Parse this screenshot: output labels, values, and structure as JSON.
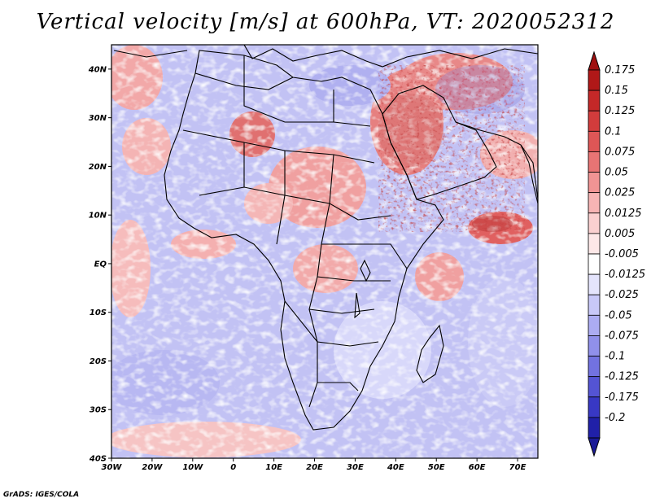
{
  "title": "Vertical velocity [m/s] at 600hPa, VT: 2020052312",
  "credit": "GrADS: IGES/COLA",
  "map": {
    "lon_range": [
      -30,
      75
    ],
    "lat_range": [
      -40,
      45
    ],
    "lat_ticks": [
      {
        "value": 40,
        "label": "40N"
      },
      {
        "value": 30,
        "label": "30N"
      },
      {
        "value": 20,
        "label": "20N"
      },
      {
        "value": 10,
        "label": "10N"
      },
      {
        "value": 0,
        "label": "EQ"
      },
      {
        "value": -10,
        "label": "10S"
      },
      {
        "value": -20,
        "label": "20S"
      },
      {
        "value": -30,
        "label": "30S"
      },
      {
        "value": -40,
        "label": "40S"
      }
    ],
    "lon_ticks": [
      {
        "value": -30,
        "label": "30W"
      },
      {
        "value": -20,
        "label": "20W"
      },
      {
        "value": -10,
        "label": "10W"
      },
      {
        "value": 0,
        "label": "0"
      },
      {
        "value": 10,
        "label": "10E"
      },
      {
        "value": 20,
        "label": "20E"
      },
      {
        "value": 30,
        "label": "30E"
      },
      {
        "value": 40,
        "label": "40E"
      },
      {
        "value": 50,
        "label": "50E"
      },
      {
        "value": 60,
        "label": "60E"
      },
      {
        "value": 70,
        "label": "70E"
      }
    ]
  },
  "colorbar": {
    "levels": [
      {
        "label": "0.175",
        "color": "#b01818"
      },
      {
        "label": "0.15",
        "color": "#c42828"
      },
      {
        "label": "0.125",
        "color": "#d23c3c"
      },
      {
        "label": "0.1",
        "color": "#de5656"
      },
      {
        "label": "0.075",
        "color": "#e87474"
      },
      {
        "label": "0.05",
        "color": "#f09494"
      },
      {
        "label": "0.025",
        "color": "#f6b4b4"
      },
      {
        "label": "0.0125",
        "color": "#fad0d0"
      },
      {
        "label": "0.005",
        "color": "#fde8e8"
      },
      {
        "label": "-0.005",
        "color": "#ffffff"
      },
      {
        "label": "-0.0125",
        "color": "#e4e4fc"
      },
      {
        "label": "-0.025",
        "color": "#c8c8f8"
      },
      {
        "label": "-0.05",
        "color": "#acacf2"
      },
      {
        "label": "-0.075",
        "color": "#9090ea"
      },
      {
        "label": "-0.1",
        "color": "#7272e0"
      },
      {
        "label": "-0.125",
        "color": "#5454d4"
      },
      {
        "label": "-0.175",
        "color": "#3838c4"
      },
      {
        "label": "-0.2",
        "color": "#2020a8"
      }
    ],
    "top_triangle_color": "#a01010",
    "bottom_triangle_color": "#1a1a96"
  }
}
